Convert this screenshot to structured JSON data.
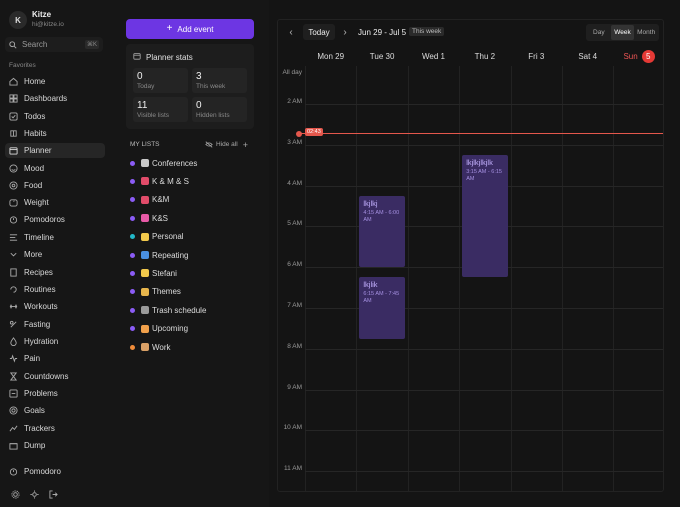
{
  "account": {
    "initial": "K",
    "name": "Kitze",
    "email": "hi@kitze.io"
  },
  "search": {
    "label": "Search",
    "shortcut": "⌘K"
  },
  "sidebar": {
    "section_title": "Favorites",
    "items": [
      {
        "label": "Home",
        "icon": "home-icon"
      },
      {
        "label": "Dashboards",
        "icon": "dashboard-icon"
      },
      {
        "label": "Todos",
        "icon": "todos-icon"
      },
      {
        "label": "Habits",
        "icon": "habits-icon"
      },
      {
        "label": "Planner",
        "icon": "planner-icon",
        "active": true
      },
      {
        "label": "Mood",
        "icon": "mood-icon"
      },
      {
        "label": "Food",
        "icon": "food-icon"
      },
      {
        "label": "Weight",
        "icon": "weight-icon"
      },
      {
        "label": "Pomodoros",
        "icon": "pomodoro-icon"
      },
      {
        "label": "Timeline",
        "icon": "timeline-icon"
      },
      {
        "label": "More",
        "icon": "chevron-down-icon"
      },
      {
        "label": "Recipes",
        "icon": "recipes-icon"
      },
      {
        "label": "Routines",
        "icon": "routines-icon"
      },
      {
        "label": "Workouts",
        "icon": "workouts-icon"
      },
      {
        "label": "Fasting",
        "icon": "fasting-icon"
      },
      {
        "label": "Hydration",
        "icon": "hydration-icon"
      },
      {
        "label": "Pain",
        "icon": "pain-icon"
      },
      {
        "label": "Countdowns",
        "icon": "hourglass-icon"
      },
      {
        "label": "Problems",
        "icon": "problems-icon"
      },
      {
        "label": "Goals",
        "icon": "goals-icon"
      },
      {
        "label": "Trackers",
        "icon": "trackers-icon"
      },
      {
        "label": "Dump",
        "icon": "dump-icon"
      }
    ],
    "pomodoro_label": "Pomodoro"
  },
  "planner": {
    "add_event_label": "Add event",
    "stats_title": "Planner stats",
    "stats": [
      {
        "value": "0",
        "label": "Today"
      },
      {
        "value": "3",
        "label": "This week"
      },
      {
        "value": "11",
        "label": "Visible lists"
      },
      {
        "value": "0",
        "label": "Hidden lists"
      }
    ],
    "lists_title": "MY LISTS",
    "hide_all_label": "Hide all",
    "lists": [
      {
        "name": "Conferences",
        "color": "#8b5cf6",
        "emoji_color": "#c9c9c9"
      },
      {
        "name": "K & M & S",
        "color": "#8b5cf6",
        "emoji_color": "#e24c6a"
      },
      {
        "name": "K&M",
        "color": "#8b5cf6",
        "emoji_color": "#e24c6a"
      },
      {
        "name": "K&S",
        "color": "#8b5cf6",
        "emoji_color": "#e85aa7"
      },
      {
        "name": "Personal",
        "color": "#22b8c9",
        "emoji_color": "#f2c94c"
      },
      {
        "name": "Repeating",
        "color": "#8b5cf6",
        "emoji_color": "#4a90e2"
      },
      {
        "name": "Stefani",
        "color": "#8b5cf6",
        "emoji_color": "#f2c94c"
      },
      {
        "name": "Themes",
        "color": "#8b5cf6",
        "emoji_color": "#e8b64c"
      },
      {
        "name": "Trash schedule",
        "color": "#8b5cf6",
        "emoji_color": "#9a9a9a"
      },
      {
        "name": "Upcoming",
        "color": "#8b5cf6",
        "emoji_color": "#f0a04b"
      },
      {
        "name": "Work",
        "color": "#f08c3a",
        "emoji_color": "#d9a066"
      }
    ]
  },
  "calendar": {
    "today_label": "Today",
    "range": "Jun 29 - Jul 5",
    "this_week_label": "This week",
    "views": [
      "Day",
      "Week",
      "Month"
    ],
    "active_view": "Week",
    "days": [
      {
        "label": "Mon 29"
      },
      {
        "label": "Tue 30"
      },
      {
        "label": "Wed 1"
      },
      {
        "label": "Thu 2"
      },
      {
        "label": "Fri 3"
      },
      {
        "label": "Sat 4"
      },
      {
        "label": "Sun",
        "badge": "5",
        "today": true
      }
    ],
    "all_day_label": "All day",
    "hours": [
      "2 AM",
      "3 AM",
      "4 AM",
      "5 AM",
      "6 AM",
      "7 AM",
      "8 AM",
      "9 AM",
      "10 AM",
      "11 AM"
    ],
    "now_time": "02:43",
    "events": [
      {
        "title": "lkjlkj",
        "time": "4:15 AM - 6:00 AM",
        "day": 1
      },
      {
        "title": "lkjlik",
        "time": "6:15 AM - 7:45 AM",
        "day": 1
      },
      {
        "title": "lkjlkjlkjlk",
        "time": "3:15 AM - 6:15 AM",
        "day": 3
      }
    ],
    "colors": {
      "accent": "#6d36e3",
      "now": "#e4574c",
      "event_bg": "#3a2c63",
      "event_text": "#c4b1ff"
    }
  }
}
